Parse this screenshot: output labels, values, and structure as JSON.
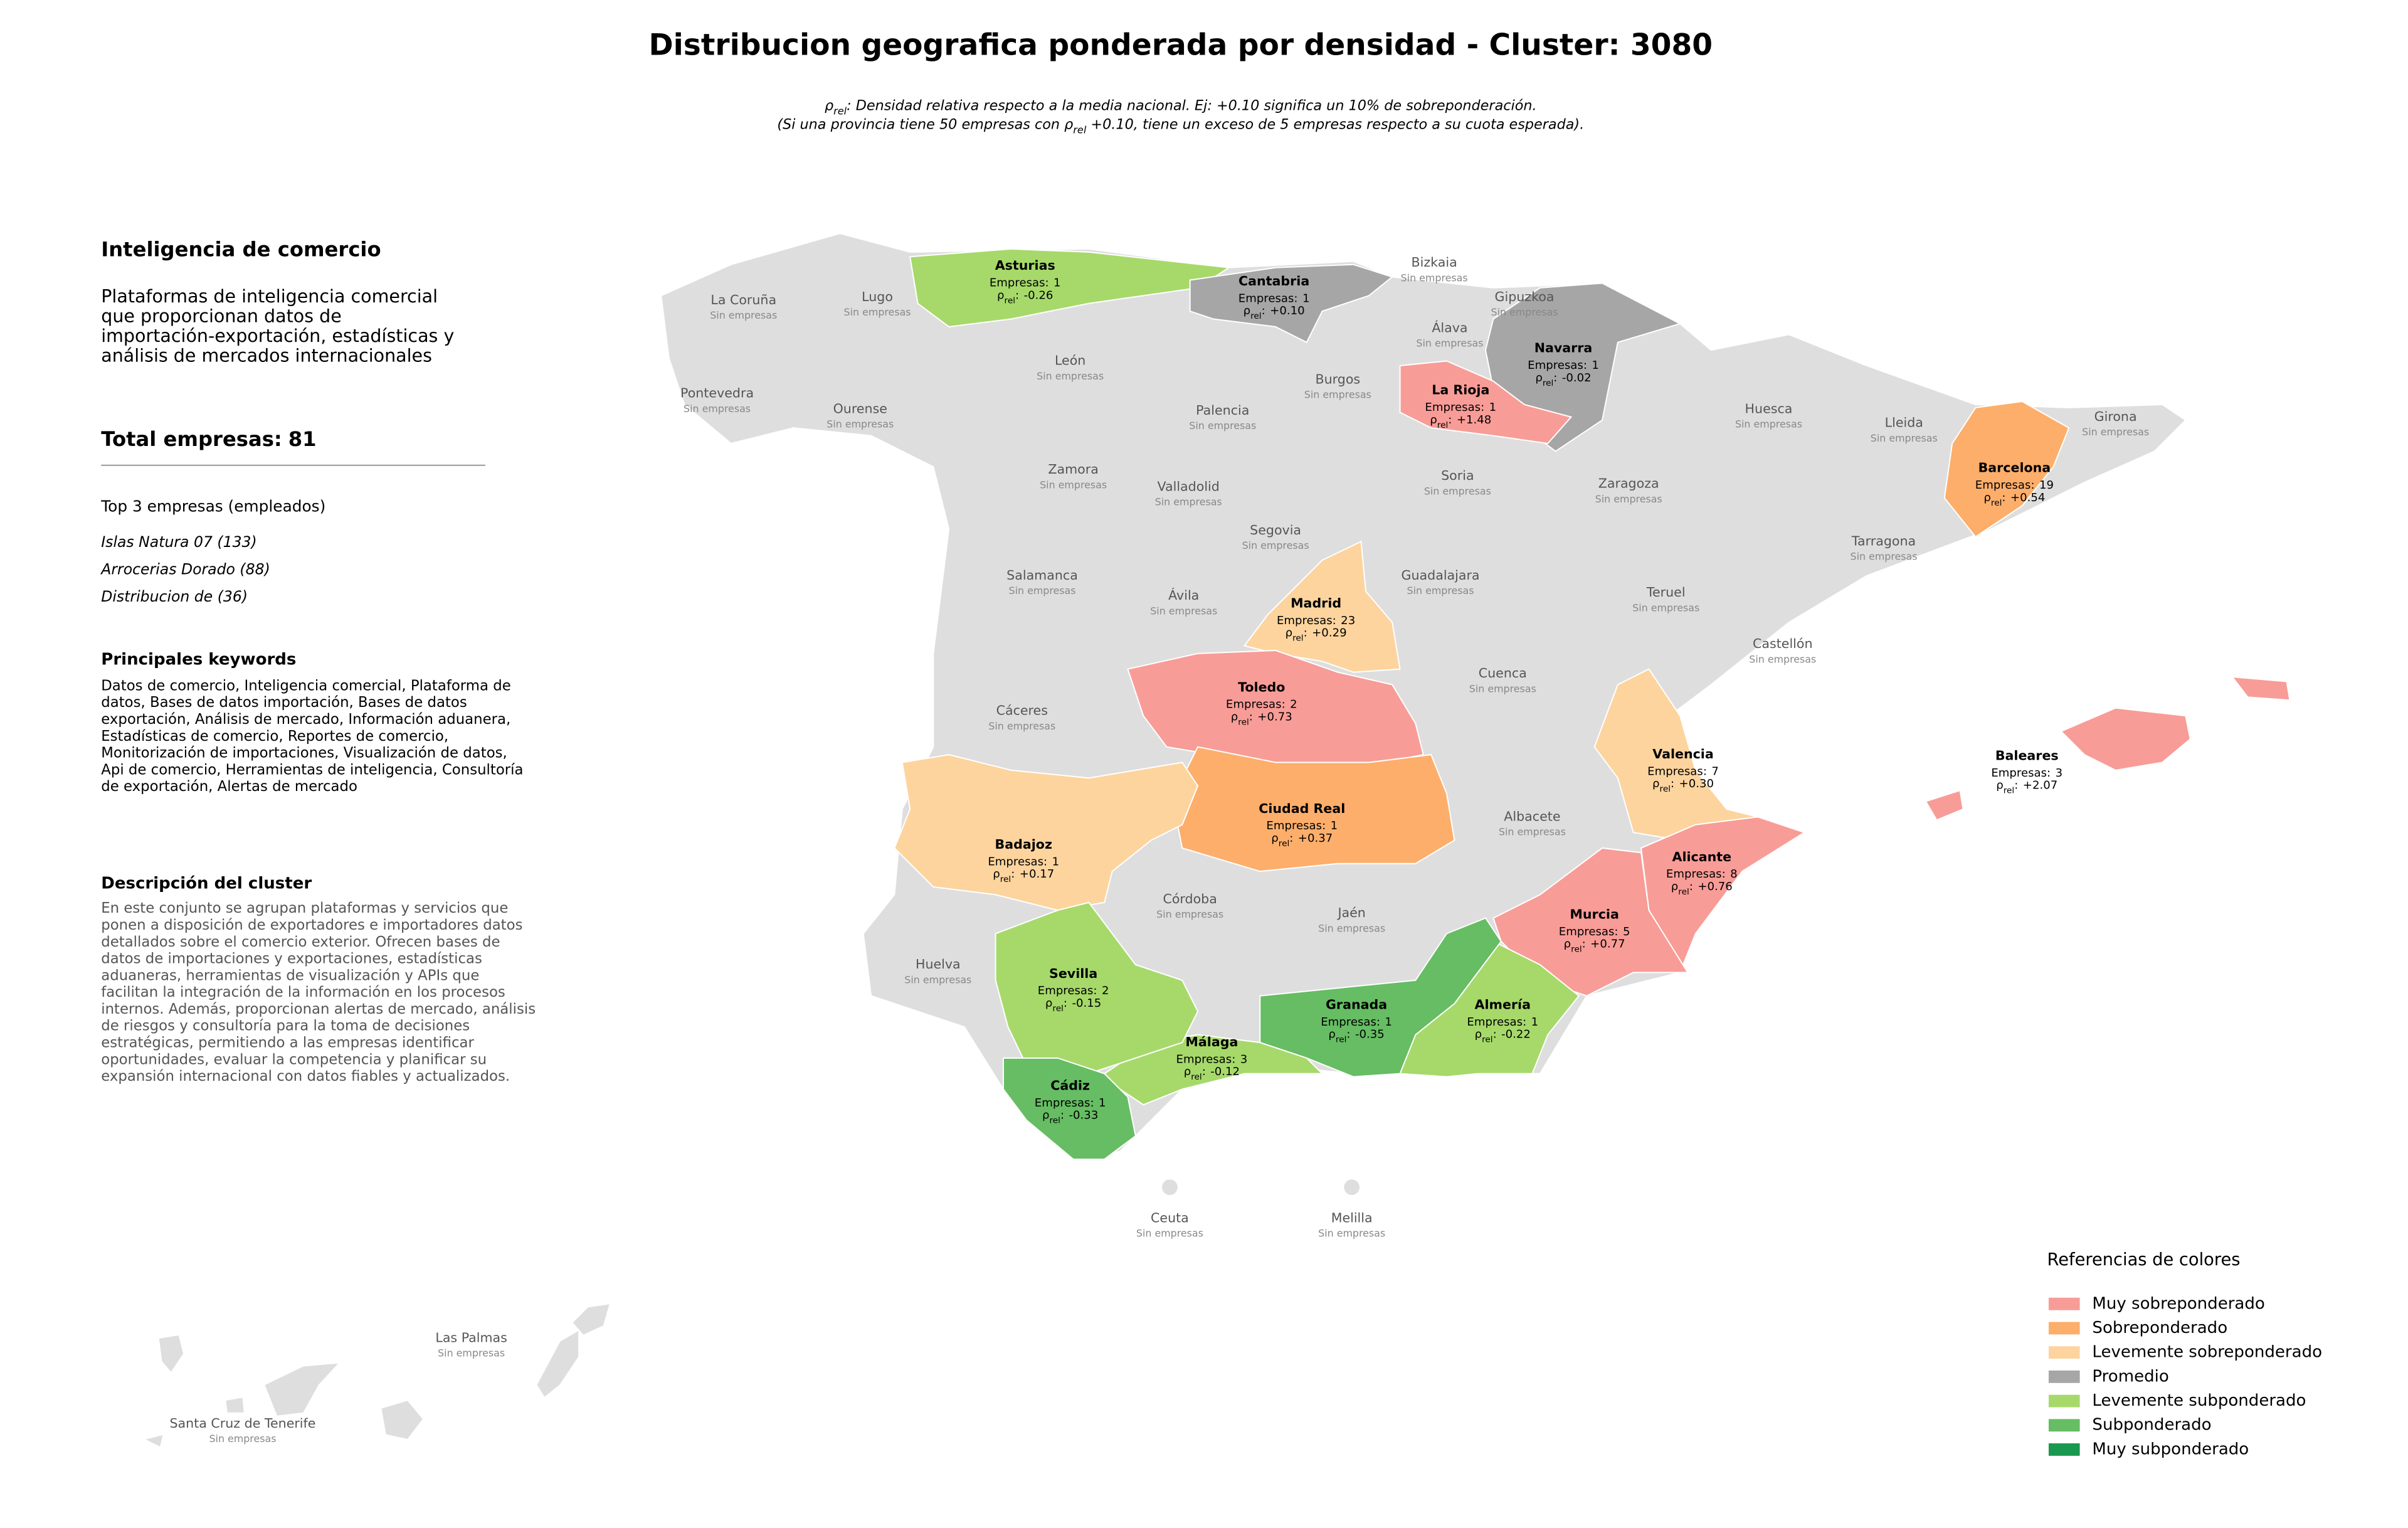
{
  "header": {
    "title": "Distribucion geografica ponderada por densidad - Cluster: 3080",
    "subtitle_line1": [
      "ρ",
      "rel",
      ": Densidad relativa respecto a la media nacional. Ej: +0.10 significa un 10% de sobreponderación."
    ],
    "subtitle_line2": [
      "(Si una provincia tiene 50 empresas con ρ",
      "rel",
      " +0.10, tiene un exceso de 5 empresas respecto a su cuota esperada)."
    ]
  },
  "panel": {
    "heading": "Inteligencia de comercio",
    "description": [
      "Plataformas de inteligencia comercial",
      "que proporcionan datos de",
      "importación-exportación, estadísticas y",
      "análisis de mercados internacionales"
    ],
    "total_label": "Total empresas:",
    "total": 81,
    "top_title": "Top 3 empresas (empleados)",
    "top": [
      "Islas Natura 07 (133)",
      "Arrocerias Dorado (88)",
      "Distribucion de (36)"
    ],
    "keywords_title": "Principales keywords",
    "keywords": [
      "Datos de comercio, Inteligencia comercial, Plataforma de",
      "datos, Bases de datos importación, Bases de datos",
      "exportación, Análisis de mercado, Información aduanera,",
      "Estadísticas de comercio, Reportes de comercio,",
      "Monitorización de importaciones, Visualización de datos,",
      "Api de comercio, Herramientas de inteligencia, Consultoría",
      "de exportación, Alertas de mercado"
    ],
    "cluster_title": "Descripción del cluster",
    "cluster_text": [
      "En este conjunto se agrupan plataformas y servicios que",
      "ponen a disposición de exportadores e importadores datos",
      "detallados sobre el comercio exterior. Ofrecen bases de",
      "datos de importaciones y exportaciones, estadísticas",
      "aduaneras, herramientas de visualización y APIs que",
      "facilitan la integración de la información en los procesos",
      "internos. Además, proporcionan alertas de mercado, análisis",
      "de riesgos y consultoría para la toma de decisiones",
      "estratégicas, permitiendo a las empresas identificar",
      "oportunidades, evaluar la competencia y planificar su",
      "expansión internacional con datos fiables y actualizados."
    ]
  },
  "map": {
    "empresas_prefix": "Empresas:",
    "rho_symbol": "ρ",
    "rho_subscript": "rel",
    "rho_separator": ":",
    "no_companies_label": "Sin empresas",
    "no_data_color": "#dedede",
    "provinces": [
      {
        "name": "Asturias",
        "color": "#a6d96a",
        "empresas": 1,
        "rho": -0.26,
        "rho_label": "-0.26"
      },
      {
        "name": "Cantabria",
        "color": "#a6a6a6",
        "empresas": 1,
        "rho": 0.1,
        "rho_label": "+0.10"
      },
      {
        "name": "Navarra",
        "color": "#a6a6a6",
        "empresas": 1,
        "rho": -0.02,
        "rho_label": "-0.02"
      },
      {
        "name": "La Rioja",
        "color": "#f89c97",
        "empresas": 1,
        "rho": 1.48,
        "rho_label": "+1.48"
      },
      {
        "name": "Barcelona",
        "color": "#fdae6b",
        "empresas": 19,
        "rho": 0.54,
        "rho_label": "+0.54"
      },
      {
        "name": "Madrid",
        "color": "#fdd49e",
        "empresas": 23,
        "rho": 0.29,
        "rho_label": "+0.29"
      },
      {
        "name": "Toledo",
        "color": "#f89c97",
        "empresas": 2,
        "rho": 0.73,
        "rho_label": "+0.73"
      },
      {
        "name": "Ciudad Real",
        "color": "#fdae6b",
        "empresas": 1,
        "rho": 0.37,
        "rho_label": "+0.37"
      },
      {
        "name": "Badajoz",
        "color": "#fdd49e",
        "empresas": 1,
        "rho": 0.17,
        "rho_label": "+0.17"
      },
      {
        "name": "Valencia",
        "color": "#fdd49e",
        "empresas": 7,
        "rho": 0.3,
        "rho_label": "+0.30"
      },
      {
        "name": "Alicante",
        "color": "#f89c97",
        "empresas": 8,
        "rho": 0.76,
        "rho_label": "+0.76"
      },
      {
        "name": "Murcia",
        "color": "#f89c97",
        "empresas": 5,
        "rho": 0.77,
        "rho_label": "+0.77"
      },
      {
        "name": "Almería",
        "color": "#a6d96a",
        "empresas": 1,
        "rho": -0.22,
        "rho_label": "-0.22"
      },
      {
        "name": "Granada",
        "color": "#66bd63",
        "empresas": 1,
        "rho": -0.35,
        "rho_label": "-0.35"
      },
      {
        "name": "Málaga",
        "color": "#a6d96a",
        "empresas": 3,
        "rho": -0.12,
        "rho_label": "-0.12"
      },
      {
        "name": "Sevilla",
        "color": "#a6d96a",
        "empresas": 2,
        "rho": -0.15,
        "rho_label": "-0.15"
      },
      {
        "name": "Cádiz",
        "color": "#66bd63",
        "empresas": 1,
        "rho": -0.33,
        "rho_label": "-0.33"
      },
      {
        "name": "Baleares",
        "color": "#f89c97",
        "empresas": 3,
        "rho": 2.07,
        "rho_label": "+2.07"
      },
      {
        "name": "La Coruña"
      },
      {
        "name": "Lugo"
      },
      {
        "name": "Pontevedra"
      },
      {
        "name": "Ourense"
      },
      {
        "name": "León"
      },
      {
        "name": "Palencia"
      },
      {
        "name": "Burgos"
      },
      {
        "name": "Bizkaia"
      },
      {
        "name": "Gipuzkoa"
      },
      {
        "name": "Álava"
      },
      {
        "name": "Huesca"
      },
      {
        "name": "Lleida"
      },
      {
        "name": "Girona"
      },
      {
        "name": "Zamora"
      },
      {
        "name": "Valladolid"
      },
      {
        "name": "Soria"
      },
      {
        "name": "Zaragoza"
      },
      {
        "name": "Tarragona"
      },
      {
        "name": "Salamanca"
      },
      {
        "name": "Segovia"
      },
      {
        "name": "Ávila"
      },
      {
        "name": "Guadalajara"
      },
      {
        "name": "Teruel"
      },
      {
        "name": "Castellón"
      },
      {
        "name": "Cáceres"
      },
      {
        "name": "Cuenca"
      },
      {
        "name": "Albacete"
      },
      {
        "name": "Córdoba"
      },
      {
        "name": "Jaén"
      },
      {
        "name": "Huelva"
      },
      {
        "name": "Ceuta"
      },
      {
        "name": "Melilla"
      },
      {
        "name": "Las Palmas"
      },
      {
        "name": "Santa Cruz de Tenerife"
      }
    ]
  },
  "legend": {
    "title": "Referencias de colores",
    "items": [
      {
        "label": "Muy sobreponderado",
        "color": "#f89c97"
      },
      {
        "label": "Sobreponderado",
        "color": "#fdae6b"
      },
      {
        "label": "Levemente sobreponderado",
        "color": "#fdd49e"
      },
      {
        "label": "Promedio",
        "color": "#a6a6a6"
      },
      {
        "label": "Levemente subponderado",
        "color": "#a6d96a"
      },
      {
        "label": "Subponderado",
        "color": "#66bd63"
      },
      {
        "label": "Muy subponderado",
        "color": "#1a9850"
      }
    ]
  }
}
